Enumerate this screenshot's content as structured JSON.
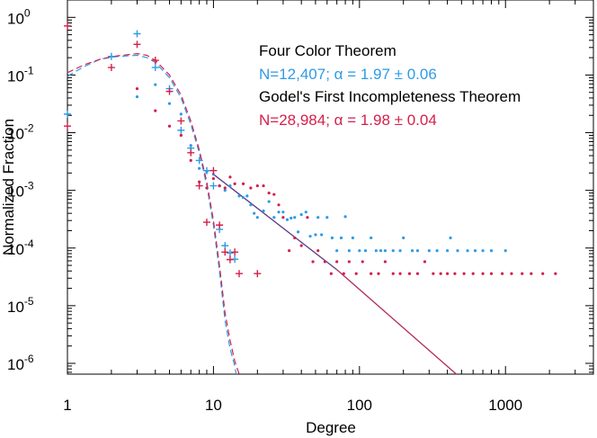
{
  "chart_data": {
    "type": "scatter",
    "xlabel": "Degree",
    "ylabel": "Normalized Fraction",
    "xscale": "log",
    "yscale": "log",
    "xlim": [
      1,
      4000
    ],
    "ylim": [
      6.5e-07,
      2
    ],
    "x_tick_labels": [
      {
        "value": 1,
        "label": "1"
      },
      {
        "value": 10,
        "label": "10"
      },
      {
        "value": 100,
        "label": "100"
      },
      {
        "value": 1000,
        "label": "1000"
      }
    ],
    "y_tick_labels": [
      {
        "value": 1,
        "base": "10",
        "exp": "0"
      },
      {
        "value": 0.1,
        "base": "10",
        "exp": "-1"
      },
      {
        "value": 0.01,
        "base": "10",
        "exp": "-2"
      },
      {
        "value": 0.001,
        "base": "10",
        "exp": "-3"
      },
      {
        "value": 0.0001,
        "base": "10",
        "exp": "-4"
      },
      {
        "value": 1e-05,
        "base": "10",
        "exp": "-5"
      },
      {
        "value": 1e-06,
        "base": "10",
        "exp": "-6"
      }
    ],
    "annotations": [
      {
        "text": "Four Color Theorem",
        "color": "#000000"
      },
      {
        "text": "N=12,407; α = 1.97 ± 0.06",
        "color": "#2e9be6"
      },
      {
        "text": "Godel's First Incompleteness Theorem",
        "color": "#000000"
      },
      {
        "text": "N=28,984; α = 1.98 ± 0.04",
        "color": "#d4204c"
      }
    ],
    "series": [
      {
        "color": "#2e9be6",
        "marker_style": "dot-and-cross",
        "plus_points": [
          [
            1,
            0.021
          ],
          [
            2,
            0.21
          ],
          [
            3,
            0.52
          ],
          [
            4,
            0.135
          ],
          [
            5,
            0.058
          ],
          [
            6,
            0.011
          ],
          [
            7,
            0.0054
          ],
          [
            8,
            0.0033
          ],
          [
            9,
            0.0022
          ],
          [
            10,
            0.0012
          ],
          [
            11,
            0.00021
          ],
          [
            12,
            0.00011
          ],
          [
            13,
            8.2e-05
          ],
          [
            14,
            6.4e-05
          ]
        ],
        "dot_points": [
          [
            3,
            0.042
          ],
          [
            4,
            0.068
          ],
          [
            5,
            0.032
          ],
          [
            6,
            0.021
          ],
          [
            7,
            0.006
          ],
          [
            8,
            0.0024
          ],
          [
            9,
            0.0021
          ],
          [
            10,
            0.0019
          ],
          [
            11,
            0.0012
          ],
          [
            12,
            0.001
          ],
          [
            13,
            0.0012
          ],
          [
            15,
            0.0008
          ],
          [
            16,
            0.00075
          ],
          [
            17,
            0.0008
          ],
          [
            18,
            0.00056
          ],
          [
            19,
            0.0004
          ],
          [
            20,
            0.00034
          ],
          [
            22,
            0.00044
          ],
          [
            24,
            0.00064
          ],
          [
            26,
            0.00034
          ],
          [
            28,
            0.00042
          ],
          [
            30,
            0.00042
          ],
          [
            32,
            0.00031
          ],
          [
            34,
            0.00033
          ],
          [
            36,
            0.00034
          ],
          [
            38,
            0.00019
          ],
          [
            40,
            0.00038
          ],
          [
            43,
            0.00042
          ],
          [
            46,
            0.00016
          ],
          [
            50,
            0.00017
          ],
          [
            52,
            0.00034
          ],
          [
            55,
            0.00017
          ],
          [
            60,
            0.00034
          ],
          [
            65,
            0.00015
          ],
          [
            70,
            9e-05
          ],
          [
            75,
            0.00015
          ],
          [
            80,
            0.00035
          ],
          [
            85,
            9e-05
          ],
          [
            90,
            0.00015
          ],
          [
            100,
            9e-05
          ],
          [
            110,
            9e-05
          ],
          [
            120,
            0.00015
          ],
          [
            130,
            9e-05
          ],
          [
            140,
            9e-05
          ],
          [
            150,
            9e-05
          ],
          [
            170,
            9e-05
          ],
          [
            190,
            9e-05
          ],
          [
            200,
            0.00015
          ],
          [
            230,
            9e-05
          ],
          [
            250,
            9e-05
          ],
          [
            300,
            9e-05
          ],
          [
            340,
            9e-05
          ],
          [
            400,
            9e-05
          ],
          [
            420,
            0.00015
          ],
          [
            470,
            9e-05
          ],
          [
            550,
            9e-05
          ],
          [
            620,
            9e-05
          ],
          [
            700,
            9e-05
          ],
          [
            800,
            9e-05
          ],
          [
            1000,
            9e-05
          ]
        ],
        "fit_curve": [
          [
            1,
            0.095
          ],
          [
            1.3,
            0.14
          ],
          [
            1.7,
            0.19
          ],
          [
            2.2,
            0.21
          ],
          [
            3,
            0.22
          ],
          [
            3.5,
            0.2
          ],
          [
            4,
            0.165
          ],
          [
            5,
            0.09
          ],
          [
            6,
            0.04
          ],
          [
            7,
            0.014
          ],
          [
            8,
            0.0045
          ],
          [
            9,
            0.0012
          ],
          [
            10,
            0.00025
          ],
          [
            11,
            4e-05
          ],
          [
            12,
            5.5e-06
          ],
          [
            13,
            1.8e-06
          ],
          [
            14,
            9e-07
          ],
          [
            14.3,
            6.5e-07
          ]
        ]
      },
      {
        "color": "#d4204c",
        "marker_style": "dot-and-cross",
        "plus_points": [
          [
            1,
            0.71
          ],
          [
            1,
            0.013
          ],
          [
            2,
            0.135
          ],
          [
            3,
            0.34
          ],
          [
            4,
            0.18
          ],
          [
            5,
            0.052
          ],
          [
            6,
            0.016
          ],
          [
            7,
            0.0045
          ],
          [
            8,
            0.0012
          ],
          [
            9,
            0.00028
          ],
          [
            10,
            0.0022
          ],
          [
            11,
            0.00025
          ],
          [
            12,
            8.5e-05
          ],
          [
            13,
            6.3e-05
          ],
          [
            14,
            8.5e-05
          ],
          [
            15,
            3.6e-05
          ],
          [
            20,
            3.6e-05
          ]
        ],
        "dot_points": [
          [
            3,
            0.058
          ],
          [
            4,
            0.024
          ],
          [
            5,
            0.013
          ],
          [
            6,
            0.009
          ],
          [
            7,
            0.0033
          ],
          [
            8,
            0.0014
          ],
          [
            9,
            0.0011
          ],
          [
            10,
            0.0016
          ],
          [
            11,
            0.0012
          ],
          [
            12,
            0.0011
          ],
          [
            13,
            0.0017
          ],
          [
            14,
            0.0013
          ],
          [
            16,
            0.0013
          ],
          [
            18,
            0.0011
          ],
          [
            20,
            0.0012
          ],
          [
            22,
            0.0012
          ],
          [
            24,
            0.0009
          ],
          [
            26,
            0.00085
          ],
          [
            28,
            0.00056
          ],
          [
            30,
            0.00034
          ],
          [
            33,
            9e-05
          ],
          [
            36,
            0.00015
          ],
          [
            40,
            0.00011
          ],
          [
            44,
            0.00034
          ],
          [
            48,
            5.8e-05
          ],
          [
            52,
            9e-05
          ],
          [
            58,
            5.8e-05
          ],
          [
            64,
            3.6e-05
          ],
          [
            70,
            5.8e-05
          ],
          [
            78,
            3.6e-05
          ],
          [
            85,
            5.8e-05
          ],
          [
            95,
            3.6e-05
          ],
          [
            105,
            5.8e-05
          ],
          [
            120,
            3.6e-05
          ],
          [
            135,
            3.6e-05
          ],
          [
            150,
            5.8e-05
          ],
          [
            170,
            3.6e-05
          ],
          [
            190,
            3.6e-05
          ],
          [
            220,
            3.6e-05
          ],
          [
            250,
            3.6e-05
          ],
          [
            280,
            5.8e-05
          ],
          [
            320,
            3.6e-05
          ],
          [
            360,
            3.6e-05
          ],
          [
            400,
            3.6e-05
          ],
          [
            450,
            3.6e-05
          ],
          [
            520,
            3.6e-05
          ],
          [
            600,
            3.6e-05
          ],
          [
            700,
            3.6e-05
          ],
          [
            800,
            3.6e-05
          ],
          [
            950,
            3.6e-05
          ],
          [
            1100,
            3.6e-05
          ],
          [
            1300,
            3.6e-05
          ],
          [
            1500,
            3.6e-05
          ],
          [
            1800,
            3.6e-05
          ],
          [
            2200,
            3.6e-05
          ]
        ],
        "fit_curve": [
          [
            1,
            0.11
          ],
          [
            1.3,
            0.15
          ],
          [
            1.7,
            0.19
          ],
          [
            2.2,
            0.215
          ],
          [
            3,
            0.235
          ],
          [
            3.5,
            0.22
          ],
          [
            4,
            0.18
          ],
          [
            5,
            0.1
          ],
          [
            6,
            0.045
          ],
          [
            7,
            0.016
          ],
          [
            8,
            0.005
          ],
          [
            9,
            0.0014
          ],
          [
            10,
            0.0003
          ],
          [
            11,
            5e-05
          ],
          [
            12,
            7.5e-06
          ],
          [
            13,
            2.5e-06
          ],
          [
            14,
            1.1e-06
          ],
          [
            15,
            6.5e-07
          ]
        ]
      }
    ],
    "power_law_fits": [
      {
        "color": "#5a3a82",
        "points": [
          [
            10,
            0.0019
          ],
          [
            70,
            4.2e-05
          ]
        ]
      },
      {
        "color": "#b22a5e",
        "points": [
          [
            70,
            4.2e-05
          ],
          [
            460,
            6.5e-07
          ]
        ]
      }
    ]
  }
}
